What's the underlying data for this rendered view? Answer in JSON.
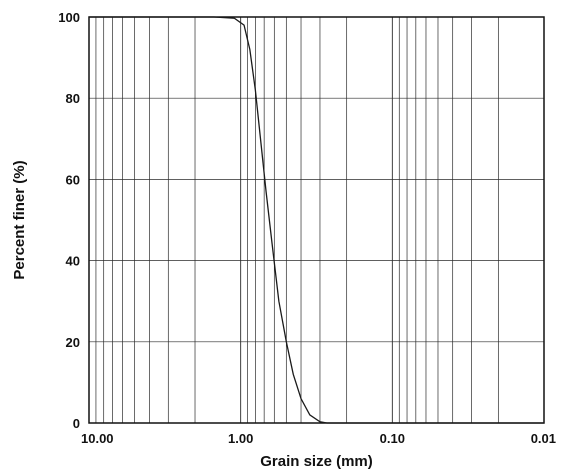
{
  "chart_data": {
    "type": "line",
    "title": "",
    "xlabel": "Grain size (mm)",
    "ylabel": "Percent finer (%)",
    "x_scale": "log",
    "x_reversed": true,
    "xlim": [
      10.0,
      0.01
    ],
    "ylim": [
      0,
      100
    ],
    "grid": true,
    "legend": "none",
    "x_ticks": [
      10.0,
      1.0,
      0.1,
      0.01
    ],
    "x_tick_labels": [
      "10.00",
      "1.00",
      "0.10",
      "0.01"
    ],
    "y_ticks": [
      0,
      20,
      40,
      60,
      80,
      100
    ],
    "y_tick_labels": [
      "0",
      "20",
      "40",
      "60",
      "80",
      "100"
    ],
    "colors": {
      "line": "#1a1a1a",
      "grid": "#2b2b2b",
      "background": "#ffffff"
    },
    "series": [
      {
        "x": [
          10.0,
          1.5,
          1.1,
          0.95,
          0.87,
          0.8,
          0.74,
          0.68,
          0.62,
          0.56,
          0.5,
          0.45,
          0.4,
          0.35,
          0.3,
          0.27,
          0.25,
          0.01
        ],
        "y": [
          100,
          100,
          99.7,
          98,
          92,
          82,
          70,
          57,
          44,
          30,
          20,
          12,
          6,
          2,
          0.3,
          0,
          0,
          0
        ]
      }
    ]
  }
}
